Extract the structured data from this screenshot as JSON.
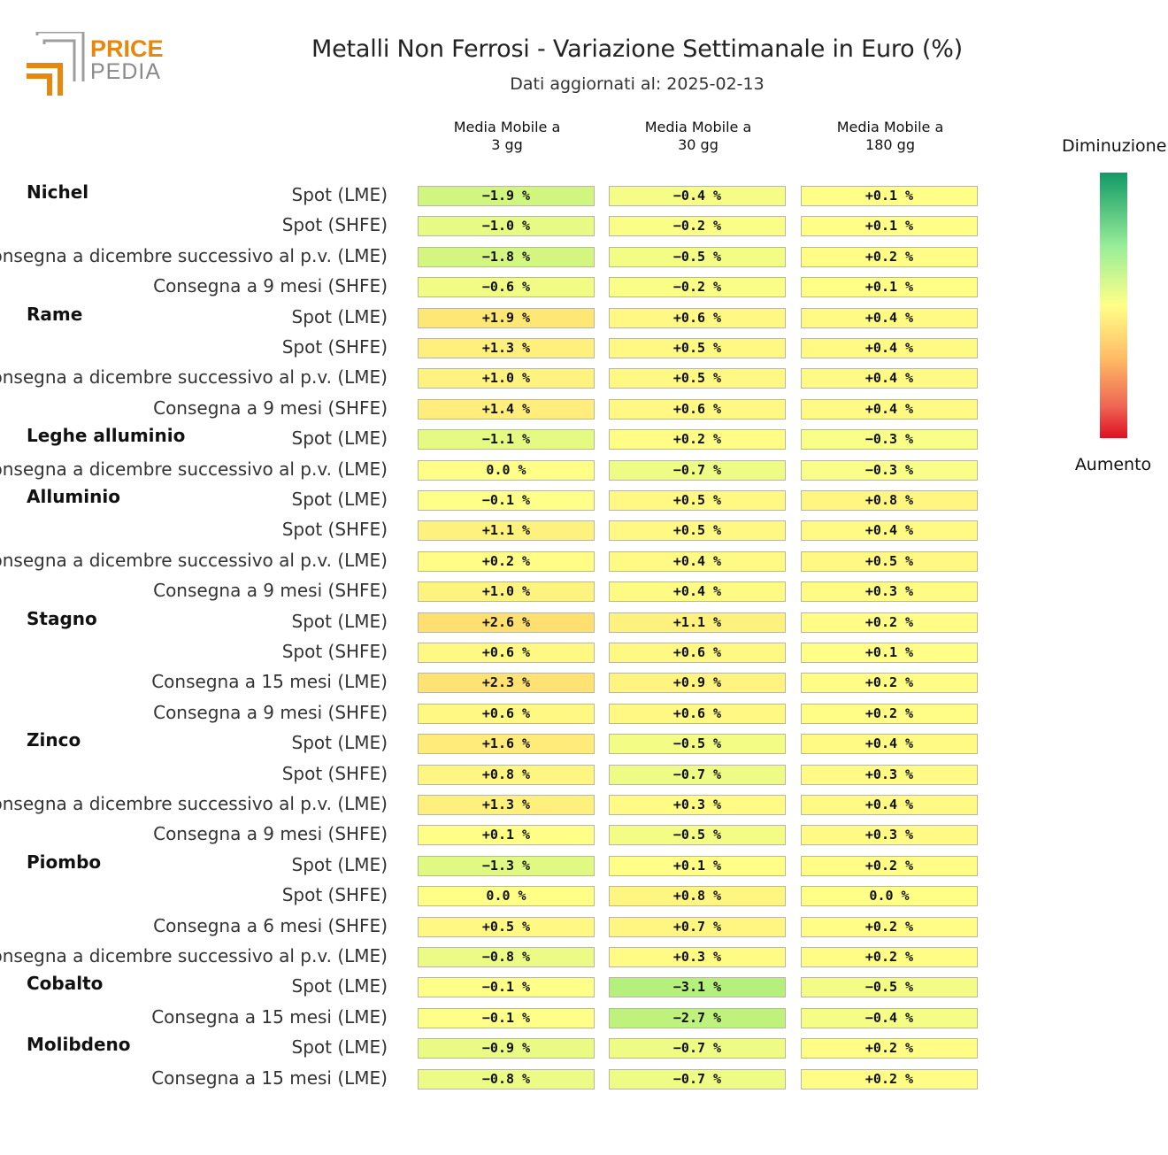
{
  "logo": {
    "word1": "PRICE",
    "word2": "PEDIA",
    "accent": "#e8870e"
  },
  "chart_data": {
    "type": "heatmap",
    "title": "Metalli Non Ferrosi - Variazione Settimanale in Euro (%)",
    "subtitle": "Dati aggiornati al: 2025-02-13",
    "columns": [
      "Media Mobile a\n3 gg",
      "Media Mobile a\n30 gg",
      "Media Mobile a\n180 gg"
    ],
    "legend": {
      "top": "Diminuzione",
      "bottom": "Aumento",
      "top_color": "#119966",
      "mid_color": "#ffff88",
      "bottom_color": "#dd1122"
    },
    "groups": [
      {
        "metal": "Nichel",
        "rows": [
          {
            "label": "Spot (LME)",
            "values": [
              -1.9,
              -0.4,
              0.1
            ]
          },
          {
            "label": "Spot (SHFE)",
            "values": [
              -1.0,
              -0.2,
              0.1
            ]
          },
          {
            "label": "Consegna a dicembre successivo al p.v. (LME)",
            "values": [
              -1.8,
              -0.5,
              0.2
            ]
          },
          {
            "label": "Consegna a 9 mesi (SHFE)",
            "values": [
              -0.6,
              -0.2,
              0.1
            ]
          }
        ]
      },
      {
        "metal": "Rame",
        "rows": [
          {
            "label": "Spot (LME)",
            "values": [
              1.9,
              0.6,
              0.4
            ]
          },
          {
            "label": "Spot (SHFE)",
            "values": [
              1.3,
              0.5,
              0.4
            ]
          },
          {
            "label": "Consegna a dicembre successivo al p.v. (LME)",
            "values": [
              1.0,
              0.5,
              0.4
            ]
          },
          {
            "label": "Consegna a 9 mesi (SHFE)",
            "values": [
              1.4,
              0.6,
              0.4
            ]
          }
        ]
      },
      {
        "metal": "Leghe alluminio",
        "rows": [
          {
            "label": "Spot (LME)",
            "values": [
              -1.1,
              0.2,
              -0.3
            ]
          },
          {
            "label": "Consegna a dicembre successivo al p.v. (LME)",
            "values": [
              0.0,
              -0.7,
              -0.3
            ]
          }
        ]
      },
      {
        "metal": "Alluminio",
        "rows": [
          {
            "label": "Spot (LME)",
            "values": [
              -0.1,
              0.5,
              0.8
            ]
          },
          {
            "label": "Spot (SHFE)",
            "values": [
              1.1,
              0.5,
              0.4
            ]
          },
          {
            "label": "Consegna a dicembre successivo al p.v. (LME)",
            "values": [
              0.2,
              0.4,
              0.5
            ]
          },
          {
            "label": "Consegna a 9 mesi (SHFE)",
            "values": [
              1.0,
              0.4,
              0.3
            ]
          }
        ]
      },
      {
        "metal": "Stagno",
        "rows": [
          {
            "label": "Spot (LME)",
            "values": [
              2.6,
              1.1,
              0.2
            ]
          },
          {
            "label": "Spot (SHFE)",
            "values": [
              0.6,
              0.6,
              0.1
            ]
          },
          {
            "label": "Consegna a 15 mesi (LME)",
            "values": [
              2.3,
              0.9,
              0.2
            ]
          },
          {
            "label": "Consegna a 9 mesi (SHFE)",
            "values": [
              0.6,
              0.6,
              0.2
            ]
          }
        ]
      },
      {
        "metal": "Zinco",
        "rows": [
          {
            "label": "Spot (LME)",
            "values": [
              1.6,
              -0.5,
              0.4
            ]
          },
          {
            "label": "Spot (SHFE)",
            "values": [
              0.8,
              -0.7,
              0.3
            ]
          },
          {
            "label": "Consegna a dicembre successivo al p.v. (LME)",
            "values": [
              1.3,
              0.3,
              0.4
            ]
          },
          {
            "label": "Consegna a 9 mesi (SHFE)",
            "values": [
              0.1,
              -0.5,
              0.3
            ]
          }
        ]
      },
      {
        "metal": "Piombo",
        "rows": [
          {
            "label": "Spot (LME)",
            "values": [
              -1.3,
              0.1,
              0.2
            ]
          },
          {
            "label": "Spot (SHFE)",
            "values": [
              0.0,
              0.8,
              0.0
            ]
          },
          {
            "label": "Consegna a 6 mesi (SHFE)",
            "values": [
              0.5,
              0.7,
              0.2
            ]
          },
          {
            "label": "Consegna a dicembre successivo al p.v. (LME)",
            "values": [
              -0.8,
              0.3,
              0.2
            ]
          }
        ]
      },
      {
        "metal": "Cobalto",
        "rows": [
          {
            "label": "Spot (LME)",
            "values": [
              -0.1,
              -3.1,
              -0.5
            ]
          },
          {
            "label": "Consegna a 15 mesi (LME)",
            "values": [
              -0.1,
              -2.7,
              -0.4
            ]
          }
        ]
      },
      {
        "metal": "Molibdeno",
        "rows": [
          {
            "label": "Spot (LME)",
            "values": [
              -0.9,
              -0.7,
              0.2
            ]
          },
          {
            "label": "Consegna a 15 mesi (LME)",
            "values": [
              -0.8,
              -0.7,
              0.2
            ]
          }
        ]
      }
    ]
  }
}
